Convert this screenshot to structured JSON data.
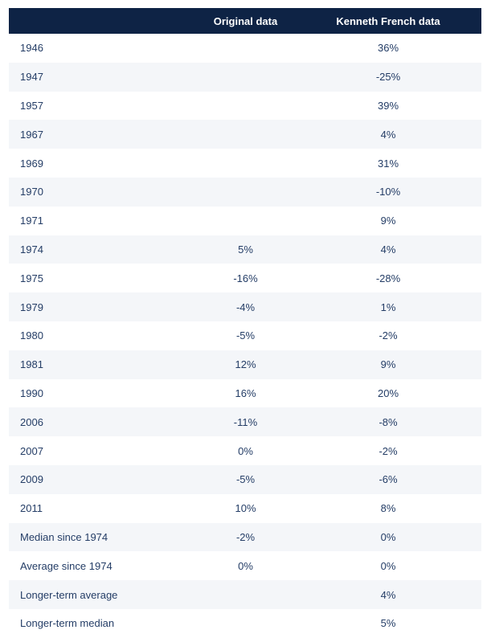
{
  "chart_data": {
    "type": "table",
    "title": "",
    "columns": [
      "",
      "Original data",
      "Kenneth French data"
    ],
    "rows": [
      [
        "1946",
        "",
        "36%"
      ],
      [
        "1947",
        "",
        "-25%"
      ],
      [
        "1957",
        "",
        "39%"
      ],
      [
        "1967",
        "",
        "4%"
      ],
      [
        "1969",
        "",
        "31%"
      ],
      [
        "1970",
        "",
        "-10%"
      ],
      [
        "1971",
        "",
        "9%"
      ],
      [
        "1974",
        "5%",
        "4%"
      ],
      [
        "1975",
        "-16%",
        "-28%"
      ],
      [
        "1979",
        "-4%",
        "1%"
      ],
      [
        "1980",
        "-5%",
        "-2%"
      ],
      [
        "1981",
        "12%",
        "9%"
      ],
      [
        "1990",
        "16%",
        "20%"
      ],
      [
        "2006",
        "-11%",
        "-8%"
      ],
      [
        "2007",
        "0%",
        "-2%"
      ],
      [
        "2009",
        "-5%",
        "-6%"
      ],
      [
        "2011",
        "10%",
        "8%"
      ],
      [
        "Median since 1974",
        "-2%",
        "0%"
      ],
      [
        "Average since 1974",
        "0%",
        "0%"
      ],
      [
        "Longer-term average",
        "",
        "4%"
      ],
      [
        "Longer-term median",
        "",
        "5%"
      ]
    ],
    "layout": {
      "striped": true,
      "header_bg": "#0e2345",
      "header_text_color": "#ffffff",
      "alt_row_bg": "#f4f6f9",
      "row_bg": "#ffffff",
      "cell_text_color": "#243d66"
    }
  }
}
